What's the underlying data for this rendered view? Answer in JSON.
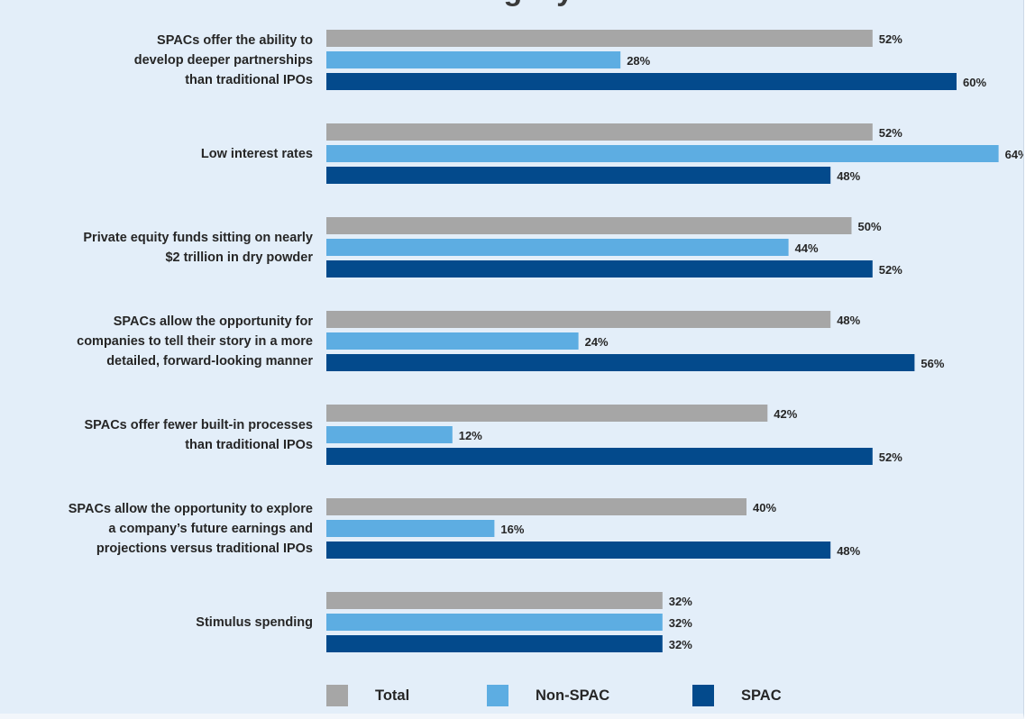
{
  "chart_data": {
    "type": "bar",
    "orientation": "horizontal",
    "title": "",
    "categories": [
      "SPACs offer the ability to develop deeper partnerships than traditional IPOs",
      "Low interest rates",
      "Private equity funds sitting on nearly $2 trillion in dry powder",
      "SPACs allow the opportunity for companies to tell their story in a more detailed, forward-looking manner",
      "SPACs offer fewer built-in processes than traditional IPOs",
      "SPACs allow the opportunity to explore a company’s future earnings and projections versus traditional IPOs",
      "Stimulus spending"
    ],
    "category_lines": [
      [
        "SPACs offer the ability to",
        "develop deeper partnerships",
        "than traditional IPOs"
      ],
      [
        "Low interest rates"
      ],
      [
        "Private equity funds sitting on nearly",
        "$2 trillion in dry powder"
      ],
      [
        "SPACs allow the opportunity for",
        "companies to tell their story in a more",
        "detailed, forward-looking manner"
      ],
      [
        "SPACs offer fewer built-in processes",
        "than traditional IPOs"
      ],
      [
        "SPACs allow the opportunity to explore",
        "a company’s future earnings and",
        "projections versus traditional IPOs"
      ],
      [
        "Stimulus spending"
      ]
    ],
    "series": [
      {
        "name": "Total",
        "color": "#a6a6a6",
        "values": [
          52,
          52,
          50,
          48,
          42,
          40,
          32
        ]
      },
      {
        "name": "Non-SPAC",
        "color": "#5dade2",
        "values": [
          28,
          64,
          44,
          24,
          12,
          16,
          32
        ]
      },
      {
        "name": "SPAC",
        "color": "#034a8c",
        "values": [
          60,
          48,
          52,
          56,
          52,
          48,
          32
        ]
      }
    ],
    "value_suffix": "%",
    "xlim": [
      0,
      64
    ],
    "grid": false,
    "legend_position": "bottom-center"
  },
  "title_fragment": "...ing ...y"
}
